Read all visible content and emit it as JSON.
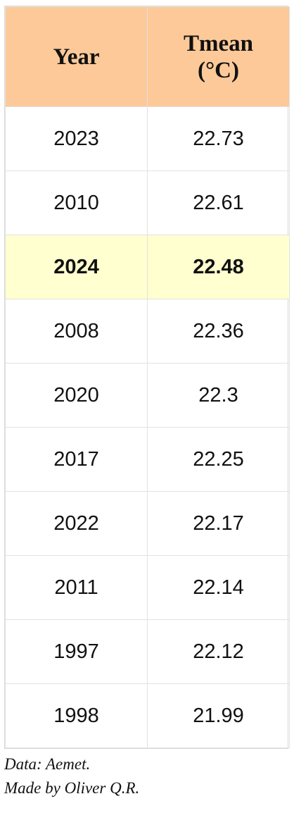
{
  "table": {
    "headers": {
      "year": "Year",
      "tmean_line1": "Tmean",
      "tmean_line2": "(°C)"
    },
    "rows": [
      {
        "year": "2023",
        "tmean": "22.73",
        "highlight": false
      },
      {
        "year": "2010",
        "tmean": "22.61",
        "highlight": false
      },
      {
        "year": "2024",
        "tmean": "22.48",
        "highlight": true
      },
      {
        "year": "2008",
        "tmean": "22.36",
        "highlight": false
      },
      {
        "year": "2020",
        "tmean": "22.3",
        "highlight": false
      },
      {
        "year": "2017",
        "tmean": "22.25",
        "highlight": false
      },
      {
        "year": "2022",
        "tmean": "22.17",
        "highlight": false
      },
      {
        "year": "2011",
        "tmean": "22.14",
        "highlight": false
      },
      {
        "year": "1997",
        "tmean": "22.12",
        "highlight": false
      },
      {
        "year": "1998",
        "tmean": "21.99",
        "highlight": false
      }
    ]
  },
  "footer": {
    "source": "Data: Aemet.",
    "credit": "Made by Oliver Q.R."
  },
  "colors": {
    "header_bg": "#fdc999",
    "highlight_bg": "#ffffcf"
  }
}
